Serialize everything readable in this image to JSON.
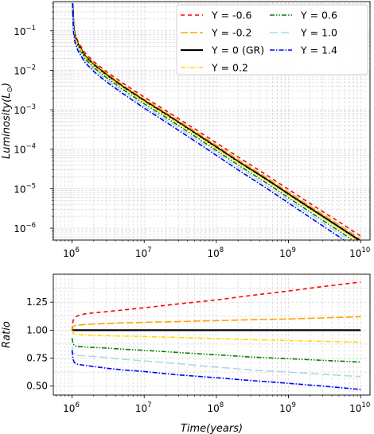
{
  "chart_data": [
    {
      "type": "line",
      "title": "",
      "xlabel": "",
      "ylabel": "Luminosity(L",
      "ylabel_sub": "⊙",
      "ylabel_close": ")",
      "x_scale": "log",
      "y_scale": "log",
      "xlim": [
        550000.0,
        13500000000.0
      ],
      "ylim": [
        5e-07,
        0.55
      ],
      "grid": true,
      "legend": {
        "placement": "top-right",
        "columns": 2
      },
      "x_ticks": [
        {
          "base": "10",
          "exp": "6",
          "value": 1000000.0
        },
        {
          "base": "10",
          "exp": "7",
          "value": 10000000.0
        },
        {
          "base": "10",
          "exp": "8",
          "value": 100000000.0
        },
        {
          "base": "10",
          "exp": "9",
          "value": 1000000000.0
        },
        {
          "base": "10",
          "exp": "10",
          "value": 10000000000.0
        }
      ],
      "y_ticks": [
        {
          "base": "10",
          "exp": "−1",
          "value": 0.1
        },
        {
          "base": "10",
          "exp": "−2",
          "value": 0.01
        },
        {
          "base": "10",
          "exp": "−3",
          "value": 0.001
        },
        {
          "base": "10",
          "exp": "−4",
          "value": 0.0001
        },
        {
          "base": "10",
          "exp": "−5",
          "value": 1e-05
        },
        {
          "base": "10",
          "exp": "−6",
          "value": 1e-06
        }
      ],
      "x": [
        1020000.0,
        1050000.0,
        1100000.0,
        1200000.0,
        1500000.0,
        2000000.0,
        3000000.0,
        5000000.0,
        10000000.0,
        20000000.0,
        50000000.0,
        100000000.0,
        200000000.0,
        500000000.0,
        1000000000.0,
        2000000000.0,
        5000000000.0,
        10000000000.0
      ],
      "series": [
        {
          "name": "Y = -0.6",
          "color": "#ff0000",
          "dash": "5,4",
          "values": [
            0.5,
            0.15,
            0.085,
            0.055,
            0.028,
            0.0165,
            0.0093,
            0.0048,
            0.0021,
            0.00095,
            0.00033,
            0.000145,
            6.4e-05,
            2.2e-05,
            9.6e-06,
            4.2e-06,
            1.45e-06,
            6.3e-07
          ]
        },
        {
          "name": "Y = -0.2",
          "color": "#ffa500",
          "dash": "9,3",
          "values": [
            0.5,
            0.14,
            0.078,
            0.05,
            0.0255,
            0.015,
            0.0084,
            0.0043,
            0.00187,
            0.00085,
            0.00029,
            0.000127,
            5.5e-05,
            1.9e-05,
            8.2e-06,
            3.6e-06,
            1.23e-06,
            5.3e-07
          ]
        },
        {
          "name": "Y = 0 (GR)",
          "color": "#000000",
          "dash": "",
          "values": [
            0.5,
            0.13,
            0.072,
            0.047,
            0.0235,
            0.0138,
            0.0077,
            0.0039,
            0.0017,
            0.00077,
            0.00026,
            0.000113,
            4.9e-05,
            1.7e-05,
            7.3e-06,
            3.2e-06,
            1.08e-06,
            4.7e-07
          ]
        },
        {
          "name": "Y = 0.6",
          "color": "#008000",
          "dash": "6,2,1.5,2,1.5,2",
          "values": [
            0.5,
            0.11,
            0.062,
            0.04,
            0.02,
            0.0117,
            0.0065,
            0.0033,
            0.00142,
            0.00064,
            0.000215,
            9.3e-05,
            4e-05,
            1.38e-05,
            5.9e-06,
            2.55e-06,
            8.5e-07,
            3.65e-07
          ]
        },
        {
          "name": "Y = 0.2",
          "color": "#ffd700",
          "dash": "6,2,1.5,2",
          "values": [
            0.5,
            0.125,
            0.069,
            0.045,
            0.0225,
            0.0132,
            0.0073,
            0.0037,
            0.00161,
            0.00073,
            0.000245,
            0.000106,
            4.6e-05,
            1.58e-05,
            6.8e-06,
            2.95e-06,
            9.9e-07,
            4.3e-07
          ]
        },
        {
          "name": "Y = 1.0",
          "color": "#add8e6",
          "dash": "10,4",
          "values": [
            0.5,
            0.1,
            0.055,
            0.036,
            0.018,
            0.0105,
            0.0058,
            0.0029,
            0.00125,
            0.00056,
            0.000188,
            8.1e-05,
            3.5e-05,
            1.19e-05,
            5.1e-06,
            2.2e-06,
            7.3e-07,
            3.1e-07
          ]
        },
        {
          "name": "Y = 1.4",
          "color": "#0000ff",
          "dash": "6,2,1.5,2",
          "values": [
            0.5,
            0.09,
            0.05,
            0.032,
            0.016,
            0.0093,
            0.0051,
            0.0026,
            0.0011,
            0.00049,
            0.000163,
            7e-05,
            3e-05,
            1.02e-05,
            4.35e-06,
            1.86e-06,
            6.1e-07,
            2.6e-07
          ]
        }
      ]
    },
    {
      "type": "line",
      "title": "",
      "xlabel": "Time(years)",
      "ylabel": "Ratio",
      "x_scale": "log",
      "y_scale": "linear",
      "xlim": [
        550000.0,
        13500000000.0
      ],
      "ylim": [
        0.42,
        1.5
      ],
      "grid": true,
      "x_ticks": [
        {
          "base": "10",
          "exp": "6",
          "value": 1000000.0
        },
        {
          "base": "10",
          "exp": "7",
          "value": 10000000.0
        },
        {
          "base": "10",
          "exp": "8",
          "value": 100000000.0
        },
        {
          "base": "10",
          "exp": "9",
          "value": 1000000000.0
        },
        {
          "base": "10",
          "exp": "10",
          "value": 10000000000.0
        }
      ],
      "y_ticks": [
        {
          "label": "0.50",
          "value": 0.5
        },
        {
          "label": "0.75",
          "value": 0.75
        },
        {
          "label": "1.00",
          "value": 1.0
        },
        {
          "label": "1.25",
          "value": 1.25
        }
      ],
      "x": [
        1000000.0,
        1030000.0,
        1080000.0,
        1200000.0,
        1500000.0,
        2000000.0,
        3000000.0,
        5000000.0,
        10000000.0,
        30000000.0,
        100000000.0,
        300000000.0,
        1000000000.0,
        3000000000.0,
        10000000000.0
      ],
      "series": [
        {
          "name": "Y = -0.6",
          "color": "#ff0000",
          "dash": "5,4",
          "values": [
            1.0,
            1.08,
            1.11,
            1.13,
            1.145,
            1.155,
            1.165,
            1.18,
            1.2,
            1.235,
            1.27,
            1.31,
            1.35,
            1.39,
            1.43
          ]
        },
        {
          "name": "Y = -0.2",
          "color": "#ffa500",
          "dash": "9,3",
          "values": [
            1.0,
            1.03,
            1.04,
            1.045,
            1.05,
            1.055,
            1.06,
            1.065,
            1.07,
            1.077,
            1.085,
            1.093,
            1.1,
            1.11,
            1.12
          ]
        },
        {
          "name": "Y = 0 (GR)",
          "color": "#000000",
          "dash": "",
          "values": [
            1.0,
            1.0,
            1.0,
            1.0,
            1.0,
            1.0,
            1.0,
            1.0,
            1.0,
            1.0,
            1.0,
            1.0,
            1.0,
            1.0,
            1.0
          ]
        },
        {
          "name": "Y = 0.2",
          "color": "#ffd700",
          "dash": "6,2,1.5,2",
          "values": [
            1.0,
            0.975,
            0.965,
            0.96,
            0.957,
            0.954,
            0.951,
            0.947,
            0.943,
            0.935,
            0.925,
            0.915,
            0.907,
            0.9,
            0.893
          ]
        },
        {
          "name": "Y = 0.6",
          "color": "#008000",
          "dash": "6,2,1.5,2,1.5,2",
          "values": [
            0.93,
            0.88,
            0.86,
            0.855,
            0.85,
            0.845,
            0.84,
            0.83,
            0.82,
            0.8,
            0.78,
            0.76,
            0.745,
            0.73,
            0.715
          ]
        },
        {
          "name": "Y = 1.0",
          "color": "#add8e6",
          "dash": "10,4",
          "values": [
            0.85,
            0.8,
            0.785,
            0.775,
            0.77,
            0.765,
            0.755,
            0.74,
            0.725,
            0.7,
            0.67,
            0.645,
            0.625,
            0.605,
            0.585
          ]
        },
        {
          "name": "Y = 1.4",
          "color": "#0000ff",
          "dash": "6,2,1.5,2",
          "values": [
            0.82,
            0.74,
            0.71,
            0.695,
            0.685,
            0.675,
            0.66,
            0.645,
            0.63,
            0.6,
            0.575,
            0.55,
            0.525,
            0.5,
            0.47
          ]
        }
      ]
    }
  ],
  "legend_order": [
    "Y = -0.6",
    "Y = 0.6",
    "Y = -0.2",
    "Y = 1.0",
    "Y = 0 (GR)",
    "Y = 1.4",
    "Y = 0.2"
  ]
}
